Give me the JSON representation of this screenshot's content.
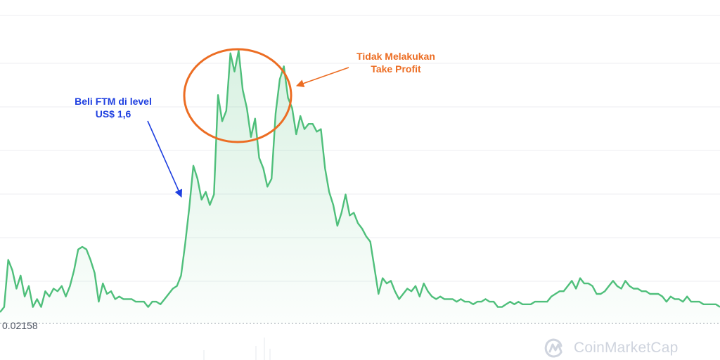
{
  "chart_data": {
    "type": "area",
    "baseline_label": "0.02158",
    "grid": true,
    "colors": {
      "line": "#4fbf7b",
      "fill": "#4fbf7b",
      "grid": "#eceef2",
      "baseline": "#9aa0aa"
    },
    "values": [
      0.0,
      0.02,
      0.2,
      0.16,
      0.09,
      0.14,
      0.06,
      0.1,
      0.02,
      0.05,
      0.02,
      0.08,
      0.06,
      0.09,
      0.08,
      0.1,
      0.06,
      0.1,
      0.16,
      0.24,
      0.25,
      0.24,
      0.2,
      0.15,
      0.04,
      0.11,
      0.07,
      0.08,
      0.05,
      0.06,
      0.05,
      0.05,
      0.05,
      0.04,
      0.04,
      0.04,
      0.02,
      0.04,
      0.04,
      0.03,
      0.05,
      0.07,
      0.09,
      0.1,
      0.14,
      0.26,
      0.4,
      0.56,
      0.51,
      0.43,
      0.46,
      0.41,
      0.45,
      0.83,
      0.73,
      0.77,
      0.99,
      0.92,
      1.0,
      0.85,
      0.78,
      0.67,
      0.74,
      0.59,
      0.55,
      0.48,
      0.51,
      0.76,
      0.89,
      0.94,
      0.82,
      0.78,
      0.68,
      0.75,
      0.7,
      0.72,
      0.72,
      0.69,
      0.7,
      0.55,
      0.46,
      0.41,
      0.33,
      0.38,
      0.45,
      0.37,
      0.38,
      0.34,
      0.32,
      0.29,
      0.27,
      0.17,
      0.07,
      0.13,
      0.11,
      0.12,
      0.08,
      0.05,
      0.07,
      0.09,
      0.08,
      0.1,
      0.06,
      0.11,
      0.08,
      0.06,
      0.05,
      0.06,
      0.05,
      0.05,
      0.05,
      0.04,
      0.05,
      0.04,
      0.04,
      0.03,
      0.04,
      0.04,
      0.05,
      0.04,
      0.04,
      0.02,
      0.02,
      0.03,
      0.04,
      0.03,
      0.04,
      0.03,
      0.03,
      0.03,
      0.04,
      0.04,
      0.04,
      0.04,
      0.06,
      0.07,
      0.08,
      0.08,
      0.1,
      0.12,
      0.09,
      0.13,
      0.11,
      0.11,
      0.1,
      0.07,
      0.07,
      0.08,
      0.1,
      0.12,
      0.1,
      0.09,
      0.12,
      0.1,
      0.09,
      0.09,
      0.08,
      0.08,
      0.07,
      0.07,
      0.07,
      0.06,
      0.04,
      0.06,
      0.05,
      0.05,
      0.04,
      0.06,
      0.04,
      0.04,
      0.04,
      0.03,
      0.03,
      0.03,
      0.03,
      0.02
    ],
    "annotations": [
      {
        "text": "Beli FTM di level\nUS$ 1,6",
        "color": "#1e3fe0"
      },
      {
        "text": "Tidak Melakukan\nTake Profit",
        "color": "#ec6d23"
      }
    ]
  },
  "watermark": {
    "text": "CoinMarketCap",
    "icon": "coinmarketcap-logo-icon",
    "color": "#cfd4de"
  }
}
